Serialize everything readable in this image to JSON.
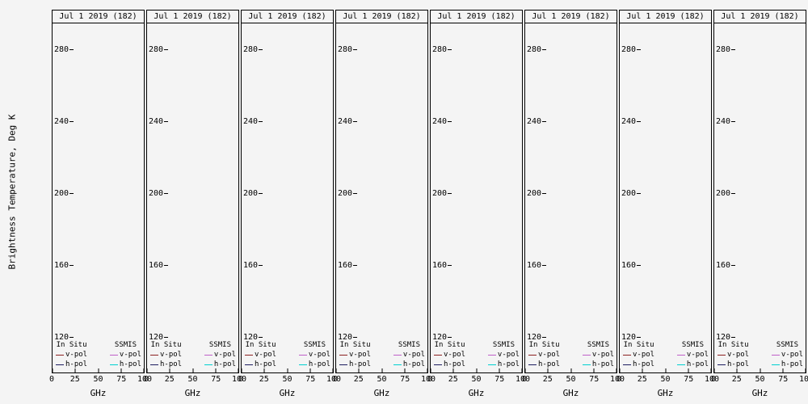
{
  "figure": {
    "bg_color": "#f4f4f4",
    "y_axis_label": "Brightness Temperature, Deg K",
    "x_axis_label": "GHz",
    "panel_title": "Jul 1 2019 (182)",
    "y_ticks": [
      280,
      240,
      200,
      160,
      120
    ],
    "x_ticks": [
      0,
      25,
      50,
      75,
      100
    ]
  },
  "legend": {
    "columns": [
      {
        "header": "In Situ",
        "entries": [
          {
            "label": "v-pol",
            "color": "#8b2020"
          },
          {
            "label": "h-pol",
            "color": "#1c1c5e"
          }
        ]
      },
      {
        "header": "SSMIS",
        "entries": [
          {
            "label": "v-pol",
            "color": "#c060c8"
          },
          {
            "label": "h-pol",
            "color": "#00d0d0"
          }
        ]
      }
    ]
  },
  "panels": [
    {
      "title": "Jul 1 2019 (182)"
    },
    {
      "title": "Jul 1 2019 (182)"
    },
    {
      "title": "Jul 1 2019 (182)"
    },
    {
      "title": "Jul 1 2019 (182)"
    },
    {
      "title": "Jul 1 2019 (182)"
    },
    {
      "title": "Jul 1 2019 (182)"
    },
    {
      "title": "Jul 1 2019 (182)"
    },
    {
      "title": "Jul 1 2019 (182)"
    }
  ],
  "chart_data": {
    "type": "line",
    "layout": "8 identical empty panels in one row",
    "panel_titles": [
      "Jul 1 2019 (182)",
      "Jul 1 2019 (182)",
      "Jul 1 2019 (182)",
      "Jul 1 2019 (182)",
      "Jul 1 2019 (182)",
      "Jul 1 2019 (182)",
      "Jul 1 2019 (182)",
      "Jul 1 2019 (182)"
    ],
    "xlabel": "GHz",
    "ylabel": "Brightness Temperature, Deg K",
    "xlim": [
      0,
      100
    ],
    "ylim": [
      100,
      300
    ],
    "xticks": [
      0,
      25,
      50,
      75,
      100
    ],
    "yticks": [
      120,
      160,
      200,
      240,
      280
    ],
    "grid": false,
    "legend_position": "bottom-inside-each-panel",
    "series": [
      {
        "name": "In Situ v-pol",
        "color": "#8b2020",
        "x": [],
        "y": []
      },
      {
        "name": "In Situ h-pol",
        "color": "#1c1c5e",
        "x": [],
        "y": []
      },
      {
        "name": "SSMIS v-pol",
        "color": "#c060c8",
        "x": [],
        "y": []
      },
      {
        "name": "SSMIS h-pol",
        "color": "#00d0d0",
        "x": [],
        "y": []
      }
    ]
  }
}
